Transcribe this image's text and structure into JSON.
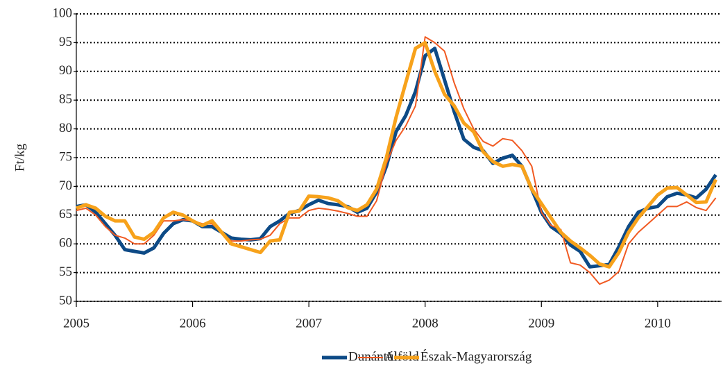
{
  "chart_data": {
    "type": "line",
    "y_label": "Ft/kg",
    "x": [
      2005,
      2005.083,
      2005.167,
      2005.25,
      2005.333,
      2005.417,
      2005.5,
      2005.583,
      2005.667,
      2005.75,
      2005.833,
      2005.917,
      2006,
      2006.083,
      2006.167,
      2006.25,
      2006.333,
      2006.417,
      2006.5,
      2006.583,
      2006.667,
      2006.75,
      2006.833,
      2006.917,
      2007,
      2007.083,
      2007.167,
      2007.25,
      2007.333,
      2007.417,
      2007.5,
      2007.583,
      2007.667,
      2007.75,
      2007.833,
      2007.917,
      2008,
      2008.083,
      2008.167,
      2008.25,
      2008.333,
      2008.417,
      2008.5,
      2008.583,
      2008.667,
      2008.75,
      2008.833,
      2008.917,
      2009,
      2009.083,
      2009.167,
      2009.25,
      2009.333,
      2009.417,
      2009.5,
      2009.583,
      2009.667,
      2009.75,
      2009.833,
      2009.917,
      2010,
      2010.083,
      2010.167,
      2010.25,
      2010.333,
      2010.417,
      2010.5
    ],
    "series": [
      {
        "name": "Dunántúl",
        "color": "#0d4a86",
        "width": 5,
        "values": [
          66.5,
          66.8,
          65.5,
          63.5,
          61.5,
          59,
          58.7,
          58.4,
          59.3,
          61.8,
          63.5,
          64.2,
          64,
          63,
          63,
          62,
          61,
          60.8,
          60.7,
          60.9,
          63,
          64,
          65.3,
          65.8,
          66.8,
          67.6,
          67,
          66.8,
          66.5,
          65.5,
          66.2,
          69,
          73.5,
          79.5,
          82.3,
          86.5,
          92.7,
          94,
          88.5,
          83,
          78.2,
          76.8,
          76.2,
          74,
          74.9,
          75.4,
          73.5,
          69.5,
          65.5,
          63,
          61.8,
          59.8,
          58.7,
          56,
          56.2,
          56.4,
          59.5,
          63,
          65.5,
          66.2,
          66.5,
          68.2,
          68.8,
          68.5,
          68,
          69.5,
          72
        ]
      },
      {
        "name": "Alföld",
        "color": "#f15a22",
        "width": 2,
        "values": [
          65.8,
          66.2,
          65,
          63,
          61.5,
          61,
          60,
          60,
          61.5,
          64,
          64,
          64.2,
          64,
          63.5,
          63.5,
          62,
          60.5,
          60.5,
          60.7,
          60.8,
          61.5,
          63.5,
          64.5,
          64.5,
          65.8,
          66.2,
          66,
          65.7,
          65.3,
          64.8,
          64.8,
          67.5,
          74,
          78,
          80.5,
          84,
          96,
          95,
          93.5,
          88,
          83.5,
          80,
          77.8,
          77,
          78.3,
          78,
          76.2,
          73.5,
          65.5,
          63.2,
          62.5,
          56.7,
          56.3,
          55,
          53,
          53.7,
          55.2,
          60,
          62,
          63.5,
          65,
          66.5,
          66.5,
          67.3,
          66.3,
          65.8,
          68
        ]
      },
      {
        "name": "Észak-Magyarország",
        "color": "#f7a21b",
        "width": 5,
        "values": [
          66.2,
          66.8,
          66.2,
          64.8,
          64,
          64,
          61.2,
          60.8,
          62,
          64.5,
          65.5,
          65,
          64,
          63.2,
          64,
          62,
          60,
          59.5,
          59,
          58.5,
          60.5,
          60.7,
          65.5,
          65.7,
          68.3,
          68.2,
          68,
          67.5,
          66.3,
          65.8,
          66.8,
          69.5,
          75,
          82,
          88,
          94,
          95,
          90,
          86,
          84,
          81,
          79.5,
          76,
          74.3,
          73.5,
          73.8,
          73.5,
          69.5,
          67,
          64.5,
          62,
          60.5,
          59.3,
          58,
          56.5,
          56,
          58.5,
          62,
          64.5,
          66.5,
          68.5,
          69.7,
          69.8,
          68.5,
          67.2,
          67.3,
          71.2
        ]
      }
    ],
    "xlim": [
      2005,
      2010.55
    ],
    "xticks": [
      2005,
      2006,
      2007,
      2008,
      2009,
      2010
    ],
    "ylim": [
      50,
      100
    ],
    "yticks": [
      50,
      55,
      60,
      65,
      70,
      75,
      80,
      85,
      90,
      95,
      100
    ],
    "grid": true,
    "legend": "bottom"
  }
}
